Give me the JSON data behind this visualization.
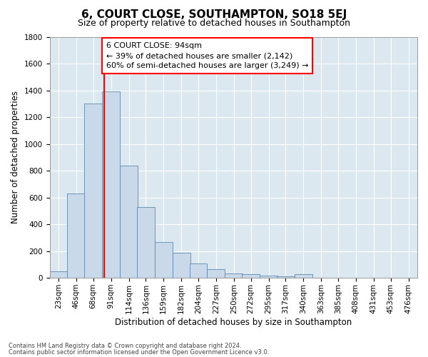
{
  "title": "6, COURT CLOSE, SOUTHAMPTON, SO18 5EJ",
  "subtitle": "Size of property relative to detached houses in Southampton",
  "xlabel": "Distribution of detached houses by size in Southampton",
  "ylabel": "Number of detached properties",
  "footer_line1": "Contains HM Land Registry data © Crown copyright and database right 2024.",
  "footer_line2": "Contains public sector information licensed under the Open Government Licence v3.0.",
  "annotation_line1": "6 COURT CLOSE: 94sqm",
  "annotation_line2": "← 39% of detached houses are smaller (2,142)",
  "annotation_line3": "60% of semi-detached houses are larger (3,249) →",
  "bar_color": "#c9d9ea",
  "bar_edge_color": "#5a8ab0",
  "red_line_x": 94,
  "bin_left_edges": [
    23,
    46,
    68,
    91,
    114,
    136,
    159,
    182,
    204,
    227,
    250,
    272,
    295,
    317,
    340,
    363,
    385,
    408,
    431,
    453,
    476
  ],
  "bin_width": 23,
  "counts": [
    50,
    630,
    1300,
    1390,
    840,
    530,
    270,
    185,
    105,
    65,
    35,
    30,
    15,
    10,
    30,
    0,
    0,
    0,
    0,
    0,
    0
  ],
  "ylim": [
    0,
    1800
  ],
  "yticks": [
    0,
    200,
    400,
    600,
    800,
    1000,
    1200,
    1400,
    1600,
    1800
  ],
  "plot_bg_color": "#dce8f0",
  "grid_color": "#ffffff",
  "title_fontsize": 11,
  "subtitle_fontsize": 9,
  "axis_label_fontsize": 8.5,
  "tick_fontsize": 7.5,
  "annotation_fontsize": 8
}
